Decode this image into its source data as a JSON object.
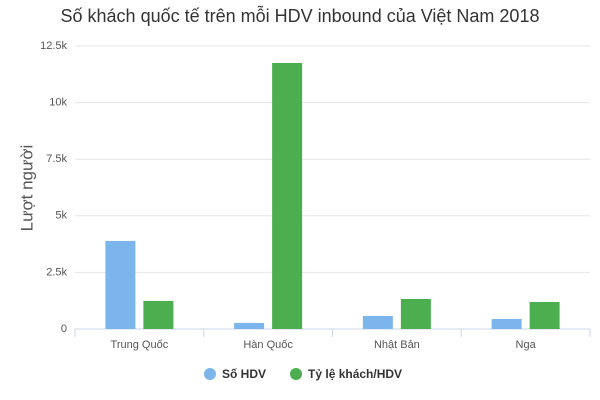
{
  "chart_data": {
    "type": "bar",
    "title": "Số khách quốc tế trên mỗi HDV inbound của Việt Nam 2018",
    "y_label": "Lượt người",
    "categories": [
      "Trung Quốc",
      "Hàn Quốc",
      "Nhật Bản",
      "Nga"
    ],
    "series": [
      {
        "name": "Số HDV",
        "color": "#7cb5ec",
        "values": [
          3890,
          265,
          574,
          442
        ]
      },
      {
        "name": "Tỷ lệ khách/HDV",
        "color": "#4cae4f",
        "values": [
          1240,
          11750,
          1325,
          1193
        ]
      }
    ],
    "ylim": [
      0,
      12500
    ],
    "yticks": [
      0,
      {
        "value": 2500,
        "label": "2.5k"
      },
      {
        "value": 5000,
        "label": "5k"
      },
      {
        "value": 7500,
        "label": "7.5k"
      },
      {
        "value": 10000,
        "label": "10k"
      },
      {
        "value": 12500,
        "label": "12.5k"
      }
    ],
    "grid": true
  }
}
